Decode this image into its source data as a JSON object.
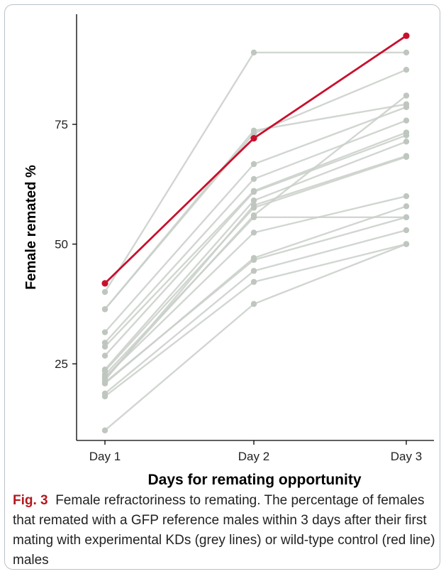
{
  "chart_data": {
    "type": "line",
    "title": "",
    "xlabel": "Days for remating opportunity",
    "ylabel": "Female remated %",
    "categories": [
      "Day 1",
      "Day 2",
      "Day 3"
    ],
    "yticks": [
      25,
      50,
      75
    ],
    "ylim": [
      9,
      98
    ],
    "grid": false,
    "legend": "none",
    "control_color": "#c8102e",
    "kd_color": "#c9cfc9",
    "control_series": {
      "values": [
        41.8,
        72.1,
        93.5
      ]
    },
    "kd_series": [
      {
        "values": [
          11.1,
          37.5,
          50.0
        ]
      },
      {
        "values": [
          18.2,
          42.1,
          50.0
        ]
      },
      {
        "values": [
          18.8,
          44.4,
          52.9
        ]
      },
      {
        "values": [
          21.1,
          46.7,
          55.6
        ]
      },
      {
        "values": [
          20.9,
          47.1,
          57.9
        ]
      },
      {
        "values": [
          22.2,
          52.4,
          60.0
        ]
      },
      {
        "values": [
          22.7,
          55.6,
          55.6
        ]
      },
      {
        "values": [
          23.5,
          57.6,
          68.2
        ]
      },
      {
        "values": [
          21.6,
          58.1,
          68.4
        ]
      },
      {
        "values": [
          23.8,
          59.1,
          71.4
        ]
      },
      {
        "values": [
          26.7,
          60.9,
          72.7
        ]
      },
      {
        "values": [
          28.6,
          61.1,
          73.3
        ]
      },
      {
        "values": [
          29.4,
          63.6,
          75.8
        ]
      },
      {
        "values": [
          31.6,
          66.7,
          78.6
        ]
      },
      {
        "values": [
          36.4,
          73.7,
          79.2
        ]
      },
      {
        "values": [
          36.4,
          73.1,
          86.4
        ]
      },
      {
        "values": [
          40.0,
          90.0,
          90.0
        ]
      },
      {
        "values": [
          22.0,
          56.0,
          81.0
        ]
      }
    ]
  },
  "caption": {
    "label": "Fig. 3",
    "title": "Female refractoriness to remating.",
    "text": "The percentage of females that remated with a GFP reference males within 3 days after their first mating with experimental KDs (grey lines) or wild-type control (red line) males"
  }
}
